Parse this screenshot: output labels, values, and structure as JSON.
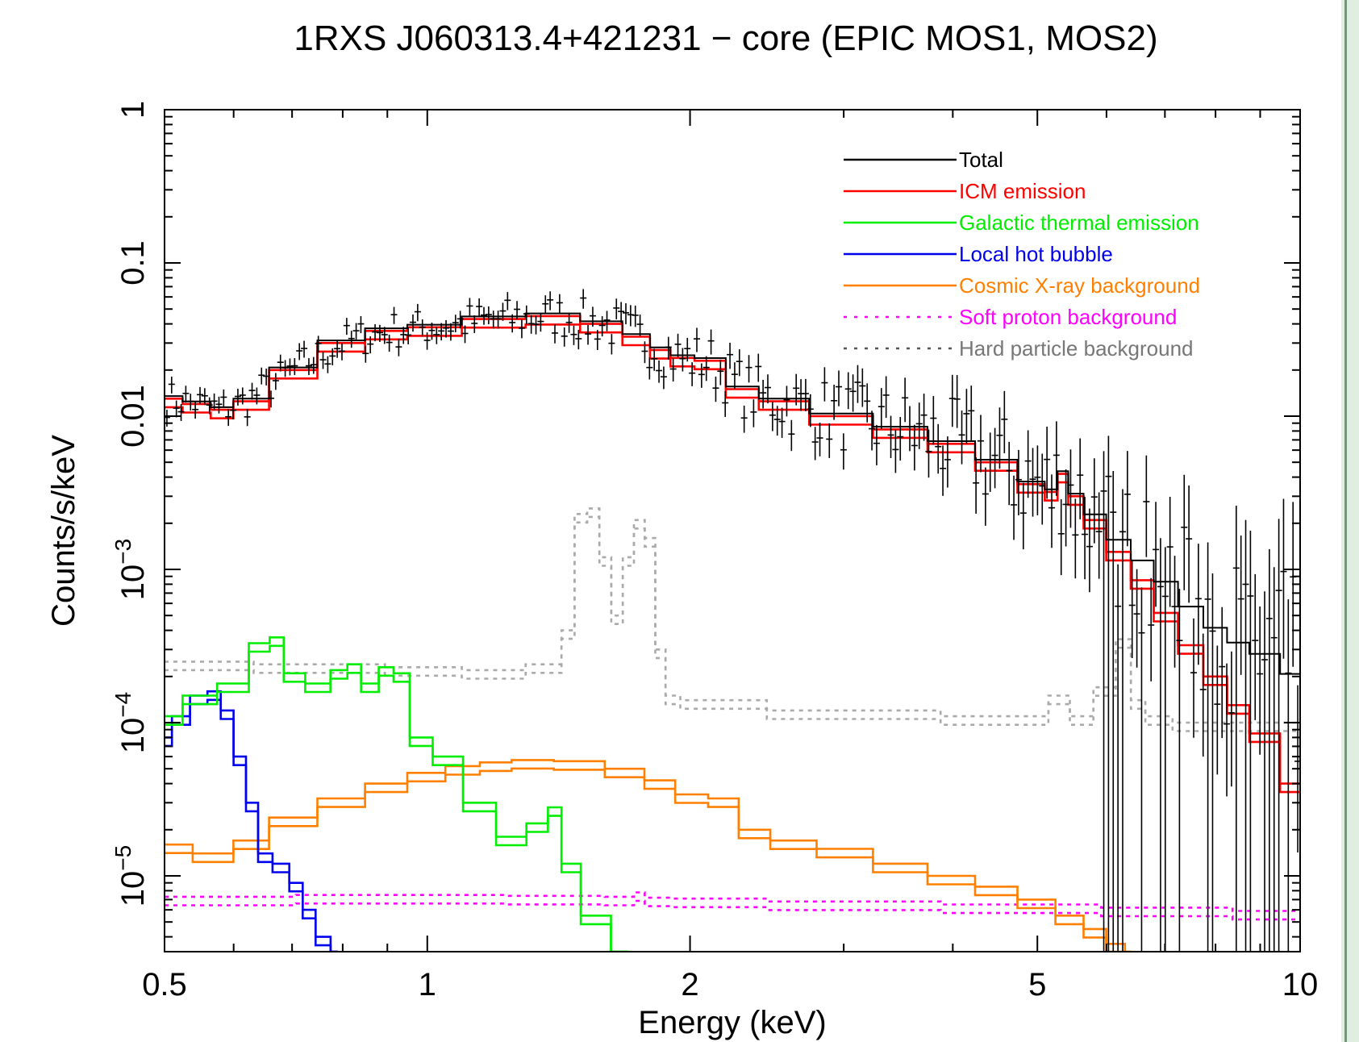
{
  "chart_data": {
    "type": "line",
    "title": "1RXS J060313.4+421231 − core (EPIC MOS1, MOS2)",
    "xlabel": "Energy (keV)",
    "ylabel": "Counts/s/keV",
    "xscale": "log",
    "yscale": "log",
    "xlim": [
      0.5,
      10
    ],
    "ylim": [
      3.2e-06,
      1
    ],
    "grid": false,
    "legend_position": "top-right",
    "x_ticks": [
      {
        "value": 0.5,
        "label": "0.5"
      },
      {
        "value": 1,
        "label": "1"
      },
      {
        "value": 2,
        "label": "2"
      },
      {
        "value": 5,
        "label": "5"
      },
      {
        "value": 10,
        "label": "10"
      }
    ],
    "y_ticks": [
      {
        "value": 1,
        "base": "1",
        "exp": ""
      },
      {
        "value": 0.1,
        "base": "0.1",
        "exp": ""
      },
      {
        "value": 0.01,
        "base": "0.01",
        "exp": ""
      },
      {
        "value": 0.001,
        "base": "10",
        "exp": "−3"
      },
      {
        "value": 0.0001,
        "base": "10",
        "exp": "−4"
      },
      {
        "value": 1e-05,
        "base": "10",
        "exp": "−5"
      }
    ],
    "series": [
      {
        "name": "Total",
        "color": "#000000",
        "dash": "solid",
        "x": [
          0.5,
          0.55,
          0.58,
          0.62,
          0.7,
          0.8,
          0.9,
          1.0,
          1.2,
          1.4,
          1.6,
          1.75,
          1.85,
          1.95,
          2.1,
          2.3,
          2.5,
          3.0,
          3.5,
          4.0,
          4.5,
          5.0,
          5.2,
          5.35,
          5.5,
          5.8,
          6.2,
          6.6,
          7.0,
          7.5,
          8.0,
          8.5,
          9.0,
          10.0
        ],
        "y": [
          0.013,
          0.012,
          0.011,
          0.0125,
          0.02,
          0.03,
          0.036,
          0.038,
          0.043,
          0.045,
          0.04,
          0.033,
          0.027,
          0.024,
          0.023,
          0.015,
          0.0125,
          0.01,
          0.0082,
          0.0066,
          0.005,
          0.0036,
          0.0032,
          0.0042,
          0.003,
          0.0022,
          0.0015,
          0.0011,
          0.0008,
          0.00055,
          0.0004,
          0.00032,
          0.00027,
          0.0002
        ]
      },
      {
        "name": "ICM emission",
        "color": "#ff0000",
        "dash": "solid",
        "x": [
          0.5,
          0.55,
          0.58,
          0.62,
          0.7,
          0.8,
          0.9,
          1.0,
          1.2,
          1.4,
          1.6,
          1.75,
          1.85,
          1.95,
          2.1,
          2.3,
          2.5,
          3.0,
          3.5,
          4.0,
          4.5,
          5.0,
          5.2,
          5.35,
          5.5,
          5.8,
          6.2,
          6.6,
          7.0,
          7.5,
          8.0,
          8.5,
          9.0,
          10.0
        ],
        "y": [
          0.013,
          0.012,
          0.011,
          0.0125,
          0.02,
          0.03,
          0.036,
          0.038,
          0.043,
          0.045,
          0.04,
          0.033,
          0.027,
          0.024,
          0.023,
          0.015,
          0.0125,
          0.01,
          0.0082,
          0.0066,
          0.005,
          0.0036,
          0.0032,
          0.0042,
          0.003,
          0.0021,
          0.0013,
          0.00085,
          0.00052,
          0.00032,
          0.0002,
          0.00013,
          8.5e-05,
          4e-05
        ]
      },
      {
        "name": "Galactic thermal emission",
        "color": "#00ee00",
        "dash": "solid",
        "x": [
          0.5,
          0.55,
          0.6,
          0.65,
          0.67,
          0.7,
          0.75,
          0.8,
          0.82,
          0.86,
          0.9,
          0.93,
          0.98,
          1.05,
          1.15,
          1.25,
          1.35,
          1.4,
          1.45,
          1.55,
          1.7
        ],
        "y": [
          0.00011,
          0.00015,
          0.00018,
          0.00033,
          0.00036,
          0.00021,
          0.00018,
          0.00022,
          0.00024,
          0.00018,
          0.00023,
          0.00021,
          8e-05,
          6e-05,
          3e-05,
          1.8e-05,
          2.2e-05,
          2.8e-05,
          1.2e-05,
          5.5e-06,
          3.2e-06
        ]
      },
      {
        "name": "Local hot bubble",
        "color": "#0000ee",
        "dash": "solid",
        "x": [
          0.5,
          0.52,
          0.55,
          0.57,
          0.59,
          0.61,
          0.63,
          0.65,
          0.68,
          0.71,
          0.73,
          0.76,
          0.79
        ],
        "y": [
          8e-05,
          0.00011,
          0.00015,
          0.00016,
          0.00012,
          6e-05,
          3e-05,
          1.4e-05,
          1.2e-05,
          9e-06,
          6e-06,
          4e-06,
          3.2e-06
        ]
      },
      {
        "name": "Cosmic X-ray background",
        "color": "#ff8000",
        "dash": "solid",
        "x": [
          0.5,
          0.58,
          0.62,
          0.7,
          0.8,
          0.9,
          1.0,
          1.1,
          1.2,
          1.3,
          1.5,
          1.7,
          1.85,
          2.0,
          2.2,
          2.35,
          2.6,
          3.0,
          3.5,
          4.0,
          4.5,
          5.0,
          5.5,
          5.8,
          6.2,
          6.4
        ],
        "y": [
          1.6e-05,
          1.4e-05,
          1.7e-05,
          2.4e-05,
          3.2e-05,
          4e-05,
          4.7e-05,
          5.2e-05,
          5.5e-05,
          5.7e-05,
          5.6e-05,
          5e-05,
          4.2e-05,
          3.4e-05,
          3.2e-05,
          2e-05,
          1.7e-05,
          1.5e-05,
          1.2e-05,
          1e-05,
          8.5e-06,
          7e-06,
          5.5e-06,
          4.5e-06,
          3.6e-06,
          3.2e-06
        ]
      },
      {
        "name": "Soft proton background",
        "color": "#ff00ff",
        "dash": "dotted",
        "x": [
          0.5,
          1.0,
          1.5,
          1.7,
          1.75,
          1.8,
          2.0,
          3.0,
          5.0,
          7.0,
          10.0
        ],
        "y": [
          7.3e-06,
          7.5e-06,
          7.4e-06,
          7.3e-06,
          7.8e-06,
          7.2e-06,
          7.1e-06,
          6.8e-06,
          6.5e-06,
          6.2e-06,
          5.9e-06
        ]
      },
      {
        "name": "Hard particle background",
        "color": "#aaaaaa",
        "dash": "dotted",
        "x": [
          0.5,
          0.8,
          1.0,
          1.2,
          1.4,
          1.45,
          1.5,
          1.55,
          1.6,
          1.65,
          1.7,
          1.75,
          1.8,
          1.85,
          1.9,
          2.0,
          3.0,
          5.0,
          5.3,
          5.6,
          6.0,
          6.3,
          6.5,
          6.8,
          7.5,
          10.0
        ],
        "y": [
          0.00025,
          0.00024,
          0.00023,
          0.00022,
          0.00024,
          0.0004,
          0.0023,
          0.0025,
          0.0012,
          0.0005,
          0.0012,
          0.0021,
          0.0016,
          0.0003,
          0.00015,
          0.00014,
          0.00012,
          0.00011,
          0.00015,
          0.00011,
          0.00017,
          0.00035,
          0.00014,
          0.00011,
          0.0001,
          0.0001
        ]
      }
    ],
    "annotations": []
  }
}
